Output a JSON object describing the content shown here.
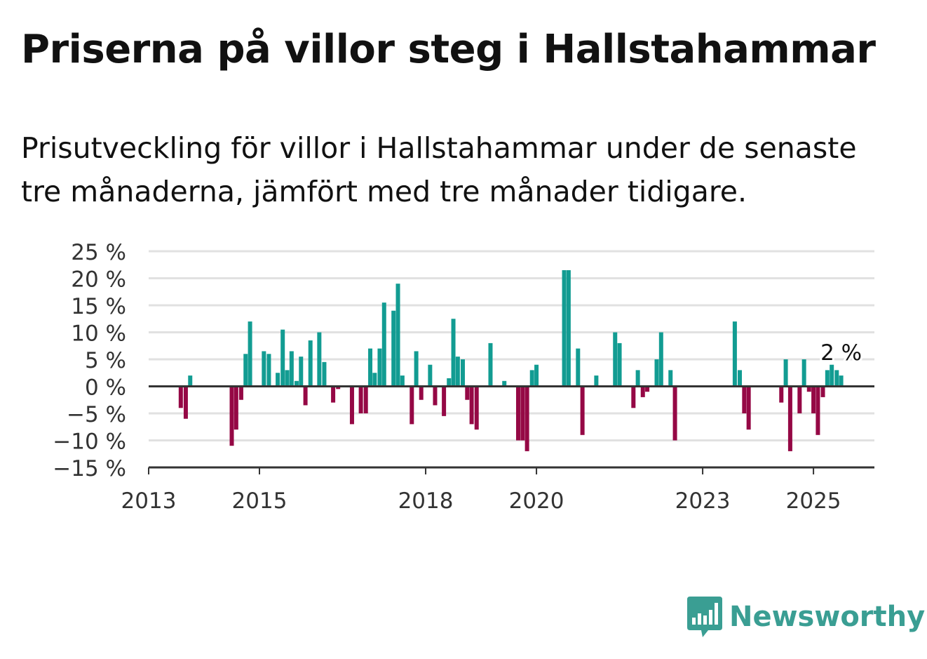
{
  "title": "Priserna på villor steg i Hallstahammar",
  "subtitle": "Prisutveckling för villor i Hallstahammar under de senaste tre månaderna, jämfört med tre månader tidigare.",
  "brand": {
    "name": "Newsworthy",
    "color": "#3a9e93"
  },
  "chart_data": {
    "type": "bar",
    "y_ticks": [
      "25 %",
      "20 %",
      "15 %",
      "10 %",
      "5 %",
      "0 %",
      "−5 %",
      "−10 %",
      "−15 %"
    ],
    "y_tick_values": [
      25,
      20,
      15,
      10,
      5,
      0,
      -5,
      -10,
      -15
    ],
    "ylim": [
      -15,
      25
    ],
    "x_ticks": [
      "2013",
      "2015",
      "2018",
      "2020",
      "2023",
      "2025"
    ],
    "x_tick_values": [
      2013,
      2015,
      2018,
      2020,
      2023,
      2025
    ],
    "xlim": [
      2013,
      2026.1
    ],
    "positive_color": "#129c92",
    "negative_color": "#950845",
    "grid": true,
    "last_value_label": "2 %",
    "x": [
      2013.58,
      2013.67,
      2013.75,
      2014.5,
      2014.58,
      2014.67,
      2014.75,
      2014.83,
      2015.08,
      2015.17,
      2015.33,
      2015.42,
      2015.5,
      2015.58,
      2015.67,
      2015.75,
      2015.83,
      2015.92,
      2016.08,
      2016.17,
      2016.33,
      2016.42,
      2016.67,
      2016.83,
      2016.92,
      2017.0,
      2017.08,
      2017.17,
      2017.25,
      2017.42,
      2017.5,
      2017.58,
      2017.75,
      2017.83,
      2017.92,
      2018.08,
      2018.17,
      2018.33,
      2018.42,
      2018.5,
      2018.58,
      2018.67,
      2018.75,
      2018.83,
      2018.92,
      2019.17,
      2019.42,
      2019.67,
      2019.75,
      2019.83,
      2019.92,
      2020.0,
      2020.5,
      2020.58,
      2020.75,
      2020.83,
      2021.08,
      2021.42,
      2021.5,
      2021.75,
      2021.83,
      2021.92,
      2022.0,
      2022.17,
      2022.25,
      2022.42,
      2022.5,
      2023.58,
      2023.67,
      2023.75,
      2023.83,
      2024.42,
      2024.5,
      2024.58,
      2024.75,
      2024.83,
      2024.92,
      2025.0,
      2025.08,
      2025.17,
      2025.25,
      2025.33,
      2025.42,
      2025.5
    ],
    "values": [
      -4,
      -6,
      2,
      -11,
      -8,
      -2.5,
      6,
      12,
      6.5,
      6,
      2.5,
      10.5,
      3,
      6.5,
      1,
      5.5,
      -3.5,
      8.5,
      10,
      4.5,
      -3,
      -0.5,
      -7,
      -5,
      -5,
      7,
      2.5,
      7,
      15.5,
      14,
      19,
      2,
      -7,
      6.5,
      -2.5,
      4,
      -3.5,
      -5.5,
      1.5,
      12.5,
      5.5,
      5,
      -2.5,
      -7,
      -8,
      8,
      1,
      -10,
      -10,
      -12,
      3,
      4,
      21.5,
      21.5,
      7,
      -9,
      2,
      10,
      8,
      -4,
      3,
      -2,
      -1,
      5,
      10,
      3,
      -10,
      12,
      3,
      -5,
      -8,
      -3,
      5,
      -12,
      -5,
      5,
      -1,
      -5,
      -9,
      -2,
      3,
      4,
      3,
      2
    ]
  }
}
